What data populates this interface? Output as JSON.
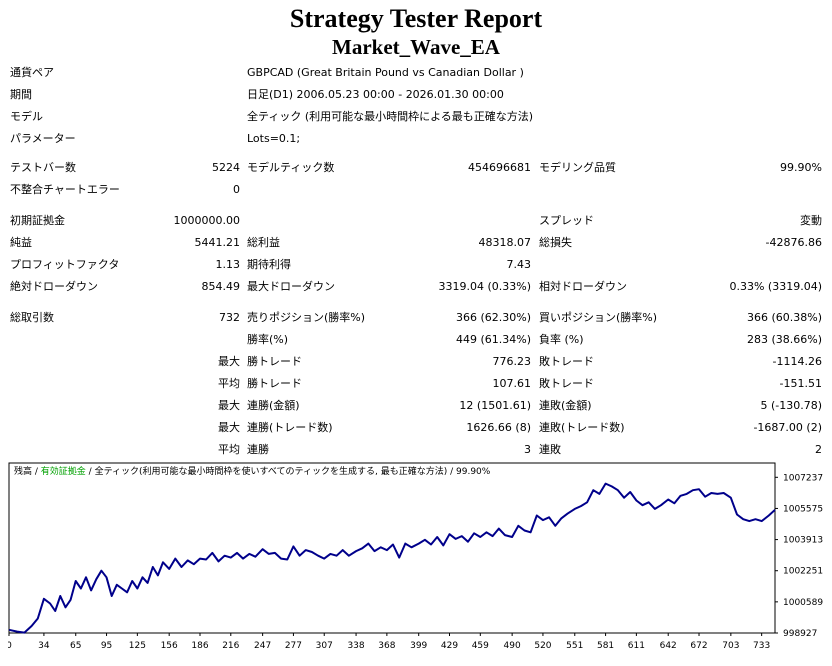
{
  "header": {
    "title": "Strategy Tester Report",
    "subtitle": "Market_Wave_EA"
  },
  "info": [
    {
      "label": "通貨ペア",
      "value": "GBPCAD (Great Britain Pound vs Canadian Dollar )"
    },
    {
      "label": "期間",
      "value": "日足(D1) 2006.05.23 00:00 - 2026.01.30 00:00"
    },
    {
      "label": "モデル",
      "value": "全ティック (利用可能な最小時間枠による最も正確な方法)"
    },
    {
      "label": "パラメーター",
      "value": "Lots=0.1;"
    }
  ],
  "stats": {
    "bars_label": "テストバー数",
    "bars": "5224",
    "ticks_label": "モデルティック数",
    "ticks": "454696681",
    "quality_label": "モデリング品質",
    "quality": "99.90%",
    "mismatch_label": "不整合チャートエラー",
    "mismatch": "0",
    "deposit_label": "初期証拠金",
    "deposit": "1000000.00",
    "spread_label": "スプレッド",
    "spread": "変動",
    "net_label": "純益",
    "net": "5441.21",
    "gross_profit_label": "総利益",
    "gross_profit": "48318.07",
    "gross_loss_label": "総損失",
    "gross_loss": "-42876.86",
    "pf_label": "プロフィットファクタ",
    "pf": "1.13",
    "expected_label": "期待利得",
    "expected": "7.43",
    "abs_dd_label": "絶対ドローダウン",
    "abs_dd": "854.49",
    "max_dd_label": "最大ドローダウン",
    "max_dd": "3319.04 (0.33%)",
    "rel_dd_label": "相対ドローダウン",
    "rel_dd": "0.33% (3319.04)",
    "trades_label": "総取引数",
    "trades": "732",
    "short_label": "売りポジション(勝率%)",
    "short": "366 (62.30%)",
    "long_label": "買いポジション(勝率%)",
    "long": "366 (60.38%)",
    "win_label": "勝率(%)",
    "win": "449 (61.34%)",
    "loss_label": "負率 (%)",
    "loss": "283 (38.66%)",
    "largest": "最大",
    "average": "平均",
    "maximum": "最大",
    "maximal": "最大",
    "average2": "平均",
    "lp_label": "勝トレード",
    "lp": "776.23",
    "ll_label": "敗トレード",
    "ll": "-1114.26",
    "ap_label": "勝トレード",
    "ap": "107.61",
    "al_label": "敗トレード",
    "al": "-151.51",
    "cw_label": "連勝(金額)",
    "cw": "12 (1501.61)",
    "cl_label": "連敗(金額)",
    "cl": "5 (-130.78)",
    "mcw_label": "連勝(トレード数)",
    "mcw": "1626.66 (8)",
    "mcl_label": "連敗(トレード数)",
    "mcl": "-1687.00 (2)",
    "acw_label": "連勝",
    "acw": "3",
    "acl_label": "連敗",
    "acl": "2"
  },
  "legend": {
    "balance": "残高",
    "sep1": " / ",
    "equity": "有効証拠金",
    "sep2": " / ",
    "model": "全ティック(利用可能な最小時間枠を使いすべてのティックを生成する, 最も正確な方法)",
    "sep3": " / ",
    "quality": "99.90%"
  },
  "colors": {
    "line": "#00008b",
    "balance_legend": "#000000",
    "equity_legend": "#00a000",
    "grid": "#cccccc"
  },
  "chart_data": {
    "type": "line",
    "x_ticks": [
      0,
      34,
      65,
      95,
      125,
      156,
      186,
      216,
      247,
      277,
      307,
      338,
      368,
      399,
      429,
      459,
      490,
      520,
      551,
      581,
      611,
      642,
      672,
      703,
      733
    ],
    "y_ticks": [
      998927,
      1000589,
      1002251,
      1003913,
      1005575,
      1007237
    ],
    "xlim": [
      0,
      746
    ],
    "ylim": [
      998927,
      1008000
    ],
    "series": [
      {
        "x": [
          0,
          8,
          15,
          22,
          28,
          34,
          40,
          45,
          50,
          55,
          60,
          65,
          70,
          75,
          80,
          85,
          90,
          95,
          100,
          105,
          110,
          115,
          120,
          125,
          130,
          135,
          140,
          145,
          150,
          156,
          162,
          168,
          174,
          180,
          186,
          192,
          198,
          204,
          210,
          216,
          222,
          228,
          234,
          240,
          247,
          253,
          259,
          265,
          271,
          277,
          283,
          289,
          295,
          301,
          307,
          313,
          319,
          325,
          331,
          338,
          344,
          350,
          356,
          362,
          368,
          374,
          380,
          386,
          392,
          399,
          405,
          411,
          417,
          423,
          429,
          435,
          441,
          447,
          453,
          459,
          465,
          471,
          477,
          483,
          490,
          496,
          502,
          508,
          514,
          520,
          526,
          532,
          538,
          544,
          551,
          557,
          563,
          569,
          575,
          581,
          587,
          593,
          599,
          605,
          611,
          617,
          623,
          629,
          635,
          642,
          648,
          654,
          660,
          666,
          672,
          678,
          684,
          690,
          696,
          703,
          709,
          715,
          721,
          727,
          733,
          740,
          746
        ],
        "y": [
          999100,
          999000,
          998950,
          999300,
          999700,
          1000750,
          1000500,
          1000100,
          1000900,
          1000300,
          1000700,
          1001700,
          1001300,
          1001900,
          1001200,
          1001800,
          1002250,
          1001900,
          1000900,
          1001500,
          1001300,
          1001100,
          1001700,
          1001300,
          1001900,
          1001600,
          1002450,
          1002000,
          1002700,
          1002350,
          1002900,
          1002450,
          1002800,
          1002600,
          1002900,
          1002850,
          1003200,
          1002750,
          1003050,
          1002950,
          1003200,
          1002900,
          1003150,
          1003000,
          1003400,
          1003150,
          1003200,
          1002900,
          1002850,
          1003550,
          1003050,
          1003350,
          1003250,
          1003050,
          1002900,
          1003150,
          1003050,
          1003350,
          1003050,
          1003300,
          1003450,
          1003700,
          1003300,
          1003500,
          1003350,
          1003650,
          1002950,
          1003700,
          1003500,
          1003700,
          1003900,
          1003650,
          1004050,
          1003600,
          1004200,
          1003950,
          1004100,
          1003800,
          1004250,
          1004050,
          1004300,
          1004100,
          1004500,
          1004150,
          1004050,
          1004650,
          1004400,
          1004300,
          1005200,
          1004950,
          1005100,
          1004650,
          1005050,
          1005300,
          1005550,
          1005700,
          1005900,
          1006550,
          1006350,
          1006900,
          1006750,
          1006550,
          1006150,
          1006450,
          1006000,
          1005750,
          1005900,
          1005550,
          1005750,
          1006050,
          1005850,
          1006250,
          1006350,
          1006550,
          1006600,
          1006200,
          1006400,
          1006350,
          1006400,
          1006150,
          1005250,
          1005000,
          1004900,
          1005000,
          1004900,
          1005200,
          1005500
        ]
      }
    ]
  }
}
